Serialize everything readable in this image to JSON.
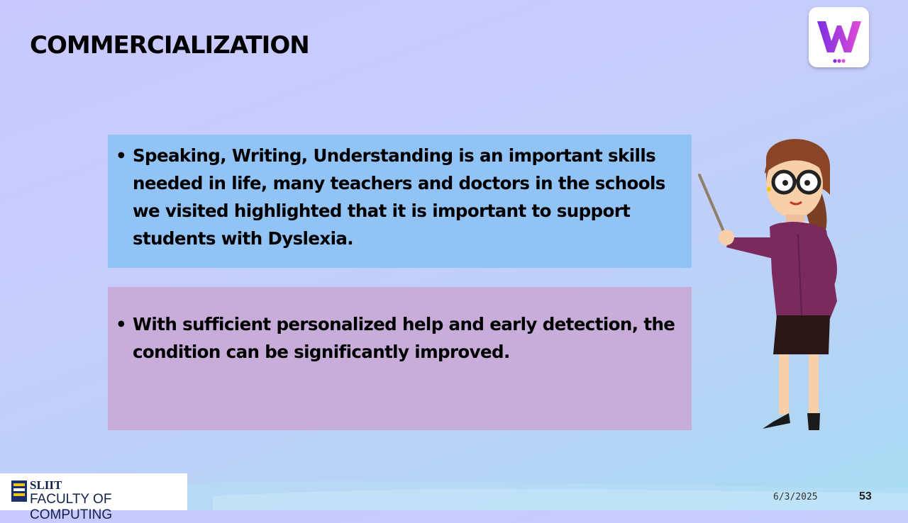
{
  "slide": {
    "title": "COMMERCIALIZATION",
    "bullets_top": [
      "Speaking, Writing, Understanding is an important skills needed in life, many teachers and doctors in the schools we visited highlighted that it is important to support students with Dyslexia."
    ],
    "bullets_bottom": [
      "With sufficient personalized help and early detection, the condition can be significantly improved."
    ],
    "bullet_glyph": "•"
  },
  "app_logo": {
    "icon": "w-logo-icon",
    "colors": [
      "#7b2fe0",
      "#e14bd6"
    ]
  },
  "footer": {
    "org": "SLIIT",
    "faculty": "FACULTY OF COMPUTING",
    "date": "6/3/2025",
    "page_number": "53"
  },
  "colors": {
    "box_top": "#92c3f5",
    "box_bottom": "#c8acd9",
    "background_start": "#c9c9ff",
    "background_end": "#a6dcf2"
  }
}
